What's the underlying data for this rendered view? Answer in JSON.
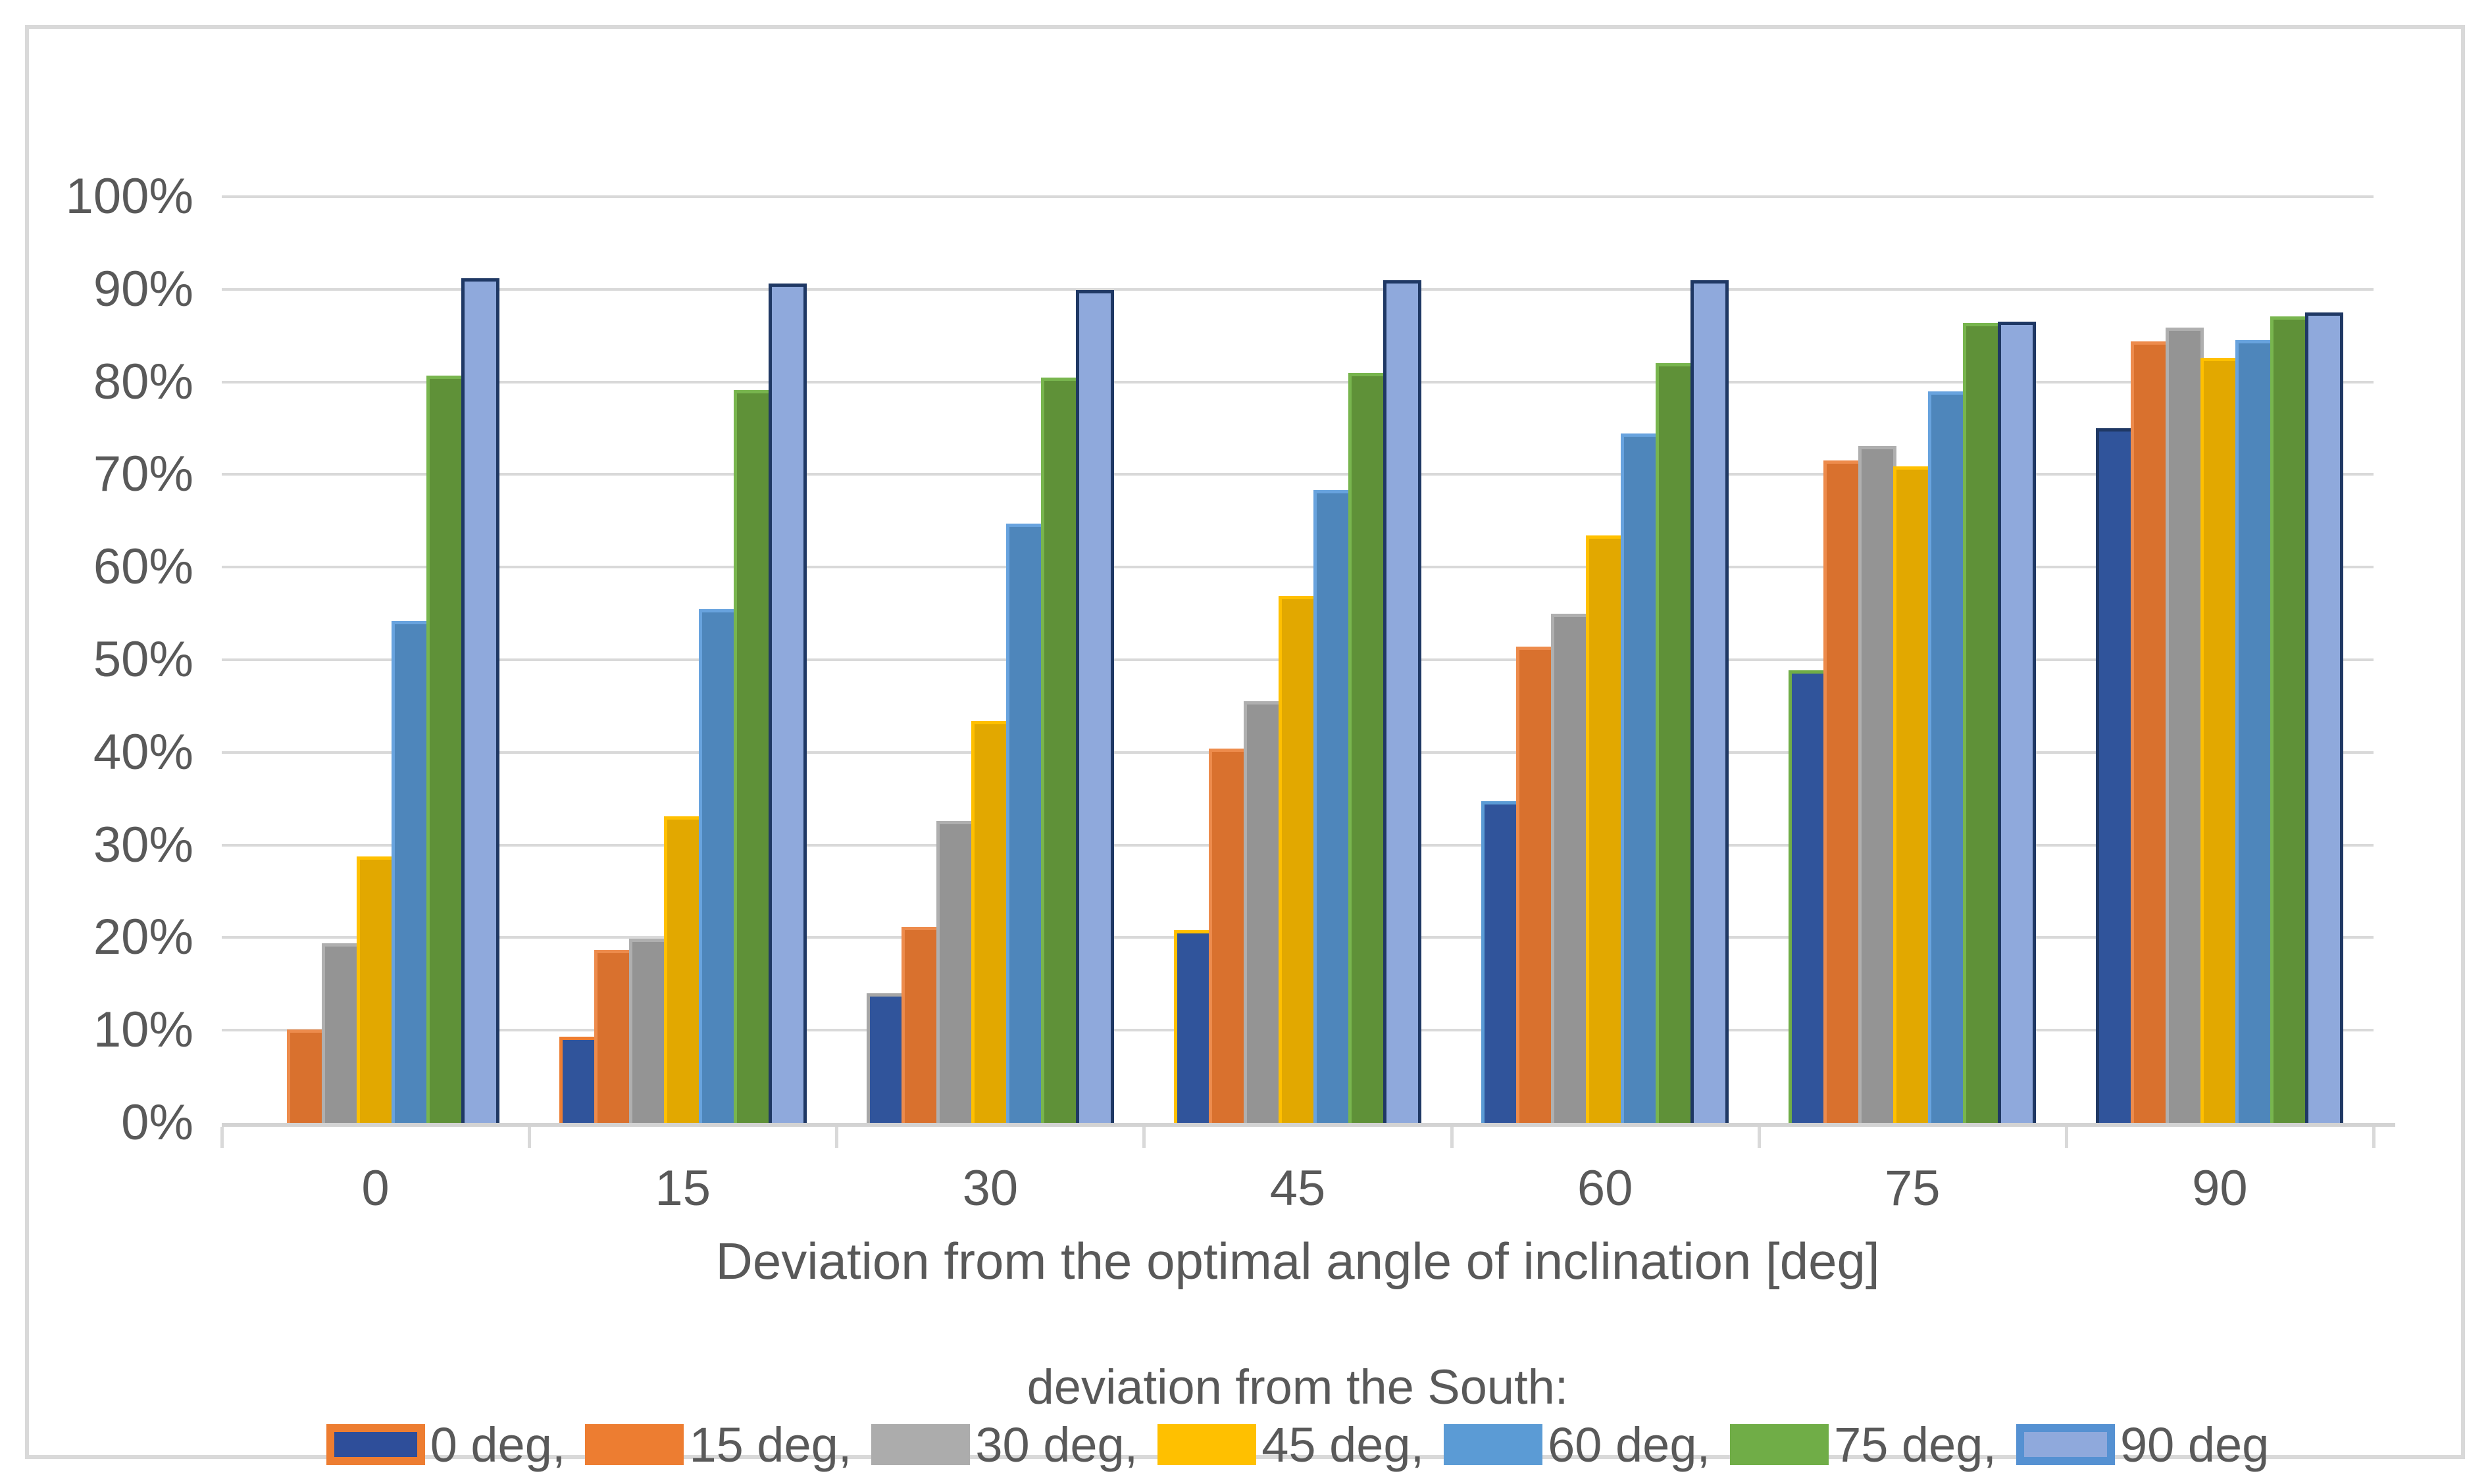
{
  "frame": {
    "border_color": "#D9D9D9",
    "background": "#FFFFFF"
  },
  "axes": {
    "text_color": "#595959",
    "gridline_color": "#D9D9D9",
    "y_tick_labels": [
      "0%",
      "10%",
      "20%",
      "30%",
      "40%",
      "50%",
      "60%",
      "70%",
      "80%",
      "90%",
      "100%"
    ],
    "x_tick_labels": [
      "0",
      "15",
      "30",
      "45",
      "60",
      "75",
      "90"
    ]
  },
  "chart_data": {
    "type": "bar",
    "title": "",
    "xlabel": "Deviation from the optimal angle of inclination [deg]",
    "ylabel": "",
    "legend_title": "deviation from the South:",
    "legend_position": "bottom",
    "grid": true,
    "ylim": [
      0,
      100
    ],
    "y_tick_step": 10,
    "categories": [
      "0",
      "15",
      "30",
      "45",
      "60",
      "75",
      "90"
    ],
    "series": [
      {
        "name": "0 deg,",
        "fill": "#30549B",
        "border": "#30549B",
        "point_borders": [
          "",
          "#ED7D31",
          "#A6A6A6",
          "#FFC000",
          "#5B9BD5",
          "#70AD47",
          "#1F3864"
        ],
        "legend_fill": "#2E4E9A",
        "legend_border": "#ED7D31",
        "values": [
          0,
          9.3,
          14,
          20.8,
          34.7,
          48.9,
          75
        ]
      },
      {
        "name": "15 deg,",
        "fill": "#D9712E",
        "border": "#ED8B4C",
        "legend_fill": "#ED7D31",
        "values": [
          10.1,
          18.7,
          21.2,
          40.4,
          51.4,
          71.5,
          84.4
        ]
      },
      {
        "name": "30 deg,",
        "fill": "#949494",
        "border": "#AFAFAF",
        "legend_fill": "#ACACAC",
        "values": [
          19.4,
          19.9,
          32.6,
          45.5,
          55,
          73.1,
          85.9
        ]
      },
      {
        "name": "45 deg,",
        "fill": "#E2A800",
        "border": "#FFC000",
        "legend_fill": "#FFC000",
        "values": [
          28.8,
          33.1,
          43.4,
          56.9,
          63.4,
          70.9,
          82.6
        ]
      },
      {
        "name": "60 deg,",
        "fill": "#4E86BB",
        "border": "#68A3DE",
        "legend_fill": "#5B9BD5",
        "values": [
          54.2,
          55.5,
          64.7,
          68.3,
          74.4,
          79,
          84.5
        ]
      },
      {
        "name": "75 deg,",
        "fill": "#5F9138",
        "border": "#78B54E",
        "legend_fill": "#70AD47",
        "values": [
          80.7,
          79.1,
          80.5,
          81,
          82,
          86.4,
          87.1
        ]
      },
      {
        "name": "90 deg",
        "fill": "#8FA9DC",
        "border": "#1F3864",
        "legend_fill": "#8FA9DC",
        "legend_border": "#5591D2",
        "values": [
          91.2,
          90.6,
          89.9,
          91,
          91,
          86.5,
          87.5
        ]
      }
    ]
  }
}
